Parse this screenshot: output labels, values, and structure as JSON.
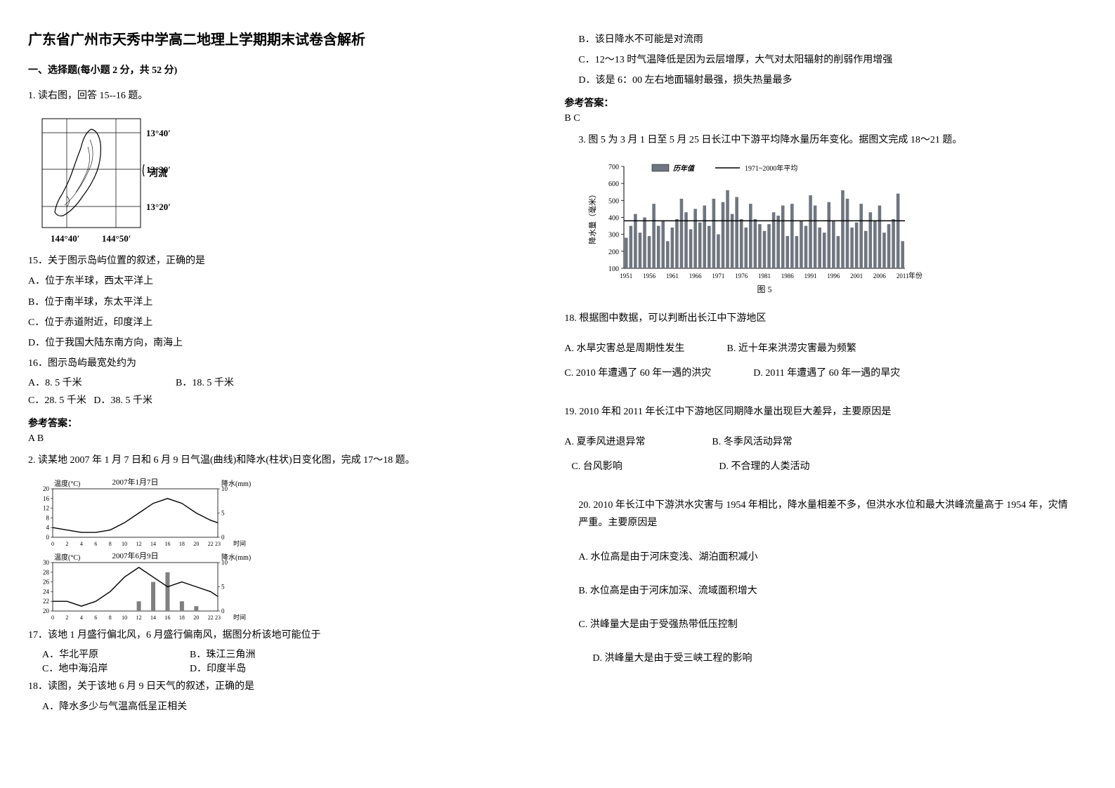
{
  "title": "广东省广州市天秀中学高二地理上学期期末试卷含解析",
  "section1": {
    "header": "一、选择题(每小题 2 分，共 52 分)"
  },
  "q1": {
    "intro": "1. 读右图，回答 15--16 题。",
    "map": {
      "lat_labels": [
        "13°40′",
        "13°30′",
        "13°20′"
      ],
      "lon_labels": [
        "144°40′",
        "144°50′"
      ],
      "river_label": "河流",
      "box_color": "#000000",
      "bg_color": "#ffffff"
    },
    "sub15": "15．关于图示岛屿位置的叙述，正确的是",
    "optA": "A．位于东半球，西太平洋上",
    "optB": "B．位于南半球，东太平洋上",
    "optC": "C．位于赤道附近，印度洋上",
    "optD": "D．位于我国大陆东南方向，南海上",
    "sub16": "16．图示岛屿最宽处约为",
    "opt16A": "A．8. 5 千米",
    "opt16B": "B．18. 5 千米",
    "opt16C": "C．28. 5 千米",
    "opt16D": "D．38. 5 千米",
    "answer_label": "参考答案：",
    "answer": "A B"
  },
  "q2": {
    "intro": "2. 读某地 2007 年 1 月 7 日和 6 月 9 日气温(曲线)和降水(柱状)日变化图，完成 17～18 题。",
    "chart1": {
      "title": "2007年1月7日",
      "ylabel_left": "温度(°C)",
      "ylabel_right": "降水(mm)",
      "yticks_left": [
        0,
        4,
        8,
        12,
        16,
        20
      ],
      "yticks_right": [
        0,
        5,
        10
      ],
      "xticks": [
        0,
        2,
        4,
        6,
        8,
        10,
        12,
        14,
        16,
        18,
        20,
        22,
        23
      ],
      "xlabel": "时间",
      "temp_values": [
        4,
        3,
        2,
        2,
        3,
        6,
        10,
        14,
        16,
        14,
        10,
        7,
        6
      ],
      "precip_values": [
        0,
        0,
        0,
        0,
        0,
        0,
        0,
        0,
        0,
        0,
        0,
        0,
        0
      ],
      "line_color": "#000000",
      "bar_color": "#808080",
      "bg_color": "#ffffff"
    },
    "chart2": {
      "title": "2007年6月9日",
      "ylabel_left": "温度(°C)",
      "ylabel_right": "降水(mm)",
      "yticks_left": [
        20,
        22,
        24,
        26,
        28,
        30
      ],
      "yticks_right": [
        0,
        5,
        10
      ],
      "xticks": [
        0,
        2,
        4,
        6,
        8,
        10,
        12,
        14,
        16,
        18,
        20,
        22,
        23
      ],
      "xlabel": "时间",
      "temp_values": [
        22,
        22,
        21,
        22,
        24,
        27,
        29,
        27,
        25,
        26,
        25,
        24,
        23
      ],
      "precip_values": [
        0,
        0,
        0,
        0,
        0,
        0,
        2,
        6,
        8,
        2,
        1,
        0,
        0
      ],
      "line_color": "#000000",
      "bar_color": "#808080",
      "bg_color": "#ffffff"
    },
    "sub17": "17．该地 1 月盛行偏北风，6 月盛行偏南风，据图分析该地可能位于",
    "opt17A": "A．华北平原",
    "opt17B": "B．珠江三角洲",
    "opt17C": "C．地中海沿岸",
    "opt17D": "D．印度半岛",
    "sub18": "18．读图，关于该地 6 月 9 日天气的叙述，正确的是",
    "opt18A": "A．降水多少与气温高低呈正相关",
    "opt18B": "B．该日降水不可能是对流雨",
    "opt18C": "C．12～13 时气温降低是因为云层增厚，大气对太阳辐射的削弱作用增强",
    "opt18D": "D．该是 6：00 左右地面辐射最强，损失热量最多",
    "answer_label": "参考答案：",
    "answer": "B  C"
  },
  "q3": {
    "intro": "3. 图 5 为 3 月 1 日至 5 月 25 日长江中下游平均降水量历年变化。据图文完成 18～21 题。",
    "chart": {
      "legend_bar": "历年值",
      "legend_line": "1971~2000年平均",
      "ylabel": "降水量（毫米）",
      "yticks": [
        100,
        200,
        300,
        400,
        500,
        600,
        700
      ],
      "xticks": [
        1951,
        1956,
        1961,
        1966,
        1971,
        1976,
        1981,
        1986,
        1991,
        1996,
        2001,
        2006,
        2011
      ],
      "xlabel": "年份",
      "caption": "图 5",
      "avg_line_value": 380,
      "bar_color": "#707680",
      "line_color": "#000000",
      "bg_color": "#ffffff",
      "grid_color": "#d0d0d0",
      "bar_values": [
        280,
        350,
        420,
        310,
        400,
        290,
        480,
        350,
        380,
        260,
        340,
        390,
        510,
        430,
        330,
        450,
        370,
        470,
        350,
        510,
        300,
        490,
        560,
        420,
        520,
        390,
        340,
        480,
        390,
        360,
        320,
        360,
        430,
        410,
        470,
        290,
        480,
        290,
        380,
        350,
        530,
        470,
        340,
        310,
        490,
        380,
        290,
        560,
        510,
        340,
        370,
        480,
        320,
        430,
        380,
        470,
        310,
        360,
        390,
        540,
        260
      ]
    },
    "sub18": "18. 根据图中数据，可以判断出长江中下游地区",
    "opt18A": "A. 水旱灾害总是周期性发生",
    "opt18B": "B. 近十年来洪涝灾害最为频繁",
    "opt18C": "C. 2010 年遭遇了 60 年一遇的洪灾",
    "opt18D": "D. 2011 年遭遇了 60 年一遇的旱灾",
    "sub19": "19. 2010 年和 2011 年长江中下游地区同期降水量出现巨大差异，主要原因是",
    "opt19A": "A. 夏季风进退异常",
    "opt19B": "B. 冬季风活动异常",
    "opt19C": "C. 台风影响",
    "opt19D": "D. 不合理的人类活动",
    "sub20": "20. 2010 年长江中下游洪水灾害与 1954 年相比，降水量相差不多，但洪水水位和最大洪峰流量高于 1954 年，灾情严重。主要原因是",
    "opt20A": "A. 水位高是由于河床变浅、湖泊面积减小",
    "opt20B": "B. 水位高是由于河床加深、流域面积增大",
    "opt20C": "C. 洪峰量大是由于受强热带低压控制",
    "opt20D": "D. 洪峰量大是由于受三峡工程的影响"
  }
}
